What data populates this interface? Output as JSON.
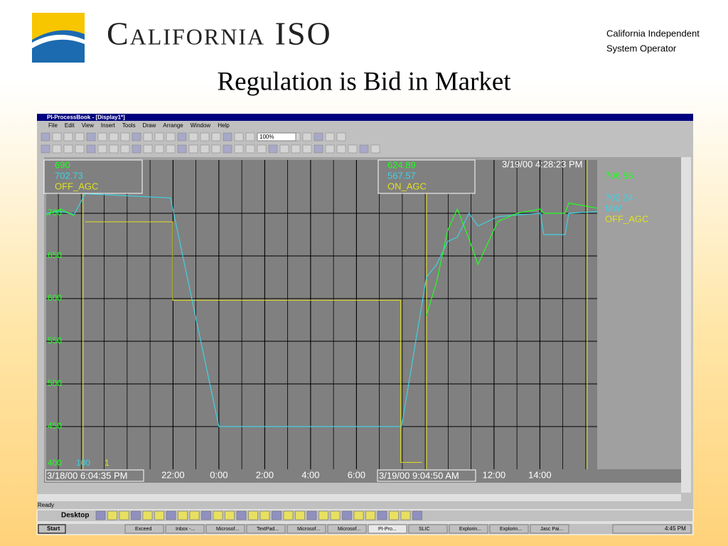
{
  "header": {
    "logo_text": "California ISO",
    "org_lines": [
      "California Independent",
      "System Operator"
    ],
    "title": "Regulation is Bid in Market"
  },
  "window": {
    "title": "PI-ProcessBook - [Display1*]",
    "menu": [
      "File",
      "Edit",
      "View",
      "Insert",
      "Tools",
      "Draw",
      "Arrange",
      "Window",
      "Help"
    ],
    "zoom": "100%",
    "status": "Ready"
  },
  "trend": {
    "type": "line",
    "x": [
      -7.53,
      -6.9,
      -6.3,
      -5.83,
      -2.11,
      0,
      7.97,
      9.05,
      9.5,
      9.98,
      10.4,
      10.91,
      11.3,
      12.16,
      13.0,
      14.02,
      14.17,
      15.1,
      15.26,
      16.5
    ],
    "series": [
      {
        "name": "cyan",
        "color": "#40d0e0",
        "values": [
          700,
          702,
          699,
          723,
          718,
          450,
          450,
          625,
          640,
          667,
          672,
          700,
          685,
          696,
          698,
          700,
          675,
          675,
          700,
          702
        ]
      },
      {
        "name": "green",
        "color": "#20ff20",
        "values": [
          698,
          705,
          697,
          null,
          null,
          null,
          null,
          580,
          620,
          680,
          705,
          670,
          640,
          690,
          700,
          705,
          700,
          700,
          712,
          706
        ]
      }
    ],
    "step": {
      "color": "#e0e020",
      "x": [
        -5.83,
        -2.01,
        -2.01,
        7.93,
        7.93,
        8.86
      ],
      "values": [
        690,
        690,
        598,
        598,
        408,
        408
      ]
    },
    "xlim": [
      -7.53,
      16.5
    ],
    "ylim": [
      400,
      762.5
    ],
    "xticks": [
      {
        "value": -2,
        "label": "22:00"
      },
      {
        "value": 0,
        "label": "0:00"
      },
      {
        "value": 2,
        "label": "2:00"
      },
      {
        "value": 4,
        "label": "4:00"
      },
      {
        "value": 6,
        "label": "6:00"
      },
      {
        "value": 12,
        "label": "12:00"
      },
      {
        "value": 14,
        "label": "14:00"
      }
    ],
    "yticks": [
      450,
      500,
      550,
      600,
      650,
      700
    ],
    "scale_labels": [
      "400",
      "100",
      "1"
    ],
    "start_time": "3/18/00 6:04:35 PM",
    "cursor_time": "3/19/00 9:04:50 AM",
    "end_time": "3/19/00 4:28:23 PM",
    "left_box": [
      690,
      702.73,
      "OFF_AGC"
    ],
    "mid_box": [
      624.89,
      567.57,
      "ON_AGC"
    ],
    "right_box": [
      706.56,
      702.24,
      "MW",
      "OFF_AGC"
    ]
  },
  "taskbar": {
    "desktop": "Desktop",
    "start": "Start",
    "buttons": [
      "Exceed",
      "Inbox -...",
      "Microsof...",
      "TextPad...",
      "Microsof...",
      "Microsof...",
      "PI-Pro...",
      "SLIC",
      "Explorin...",
      "Explorin...",
      "Jasc Pai..."
    ],
    "clock": "4:45 PM"
  }
}
